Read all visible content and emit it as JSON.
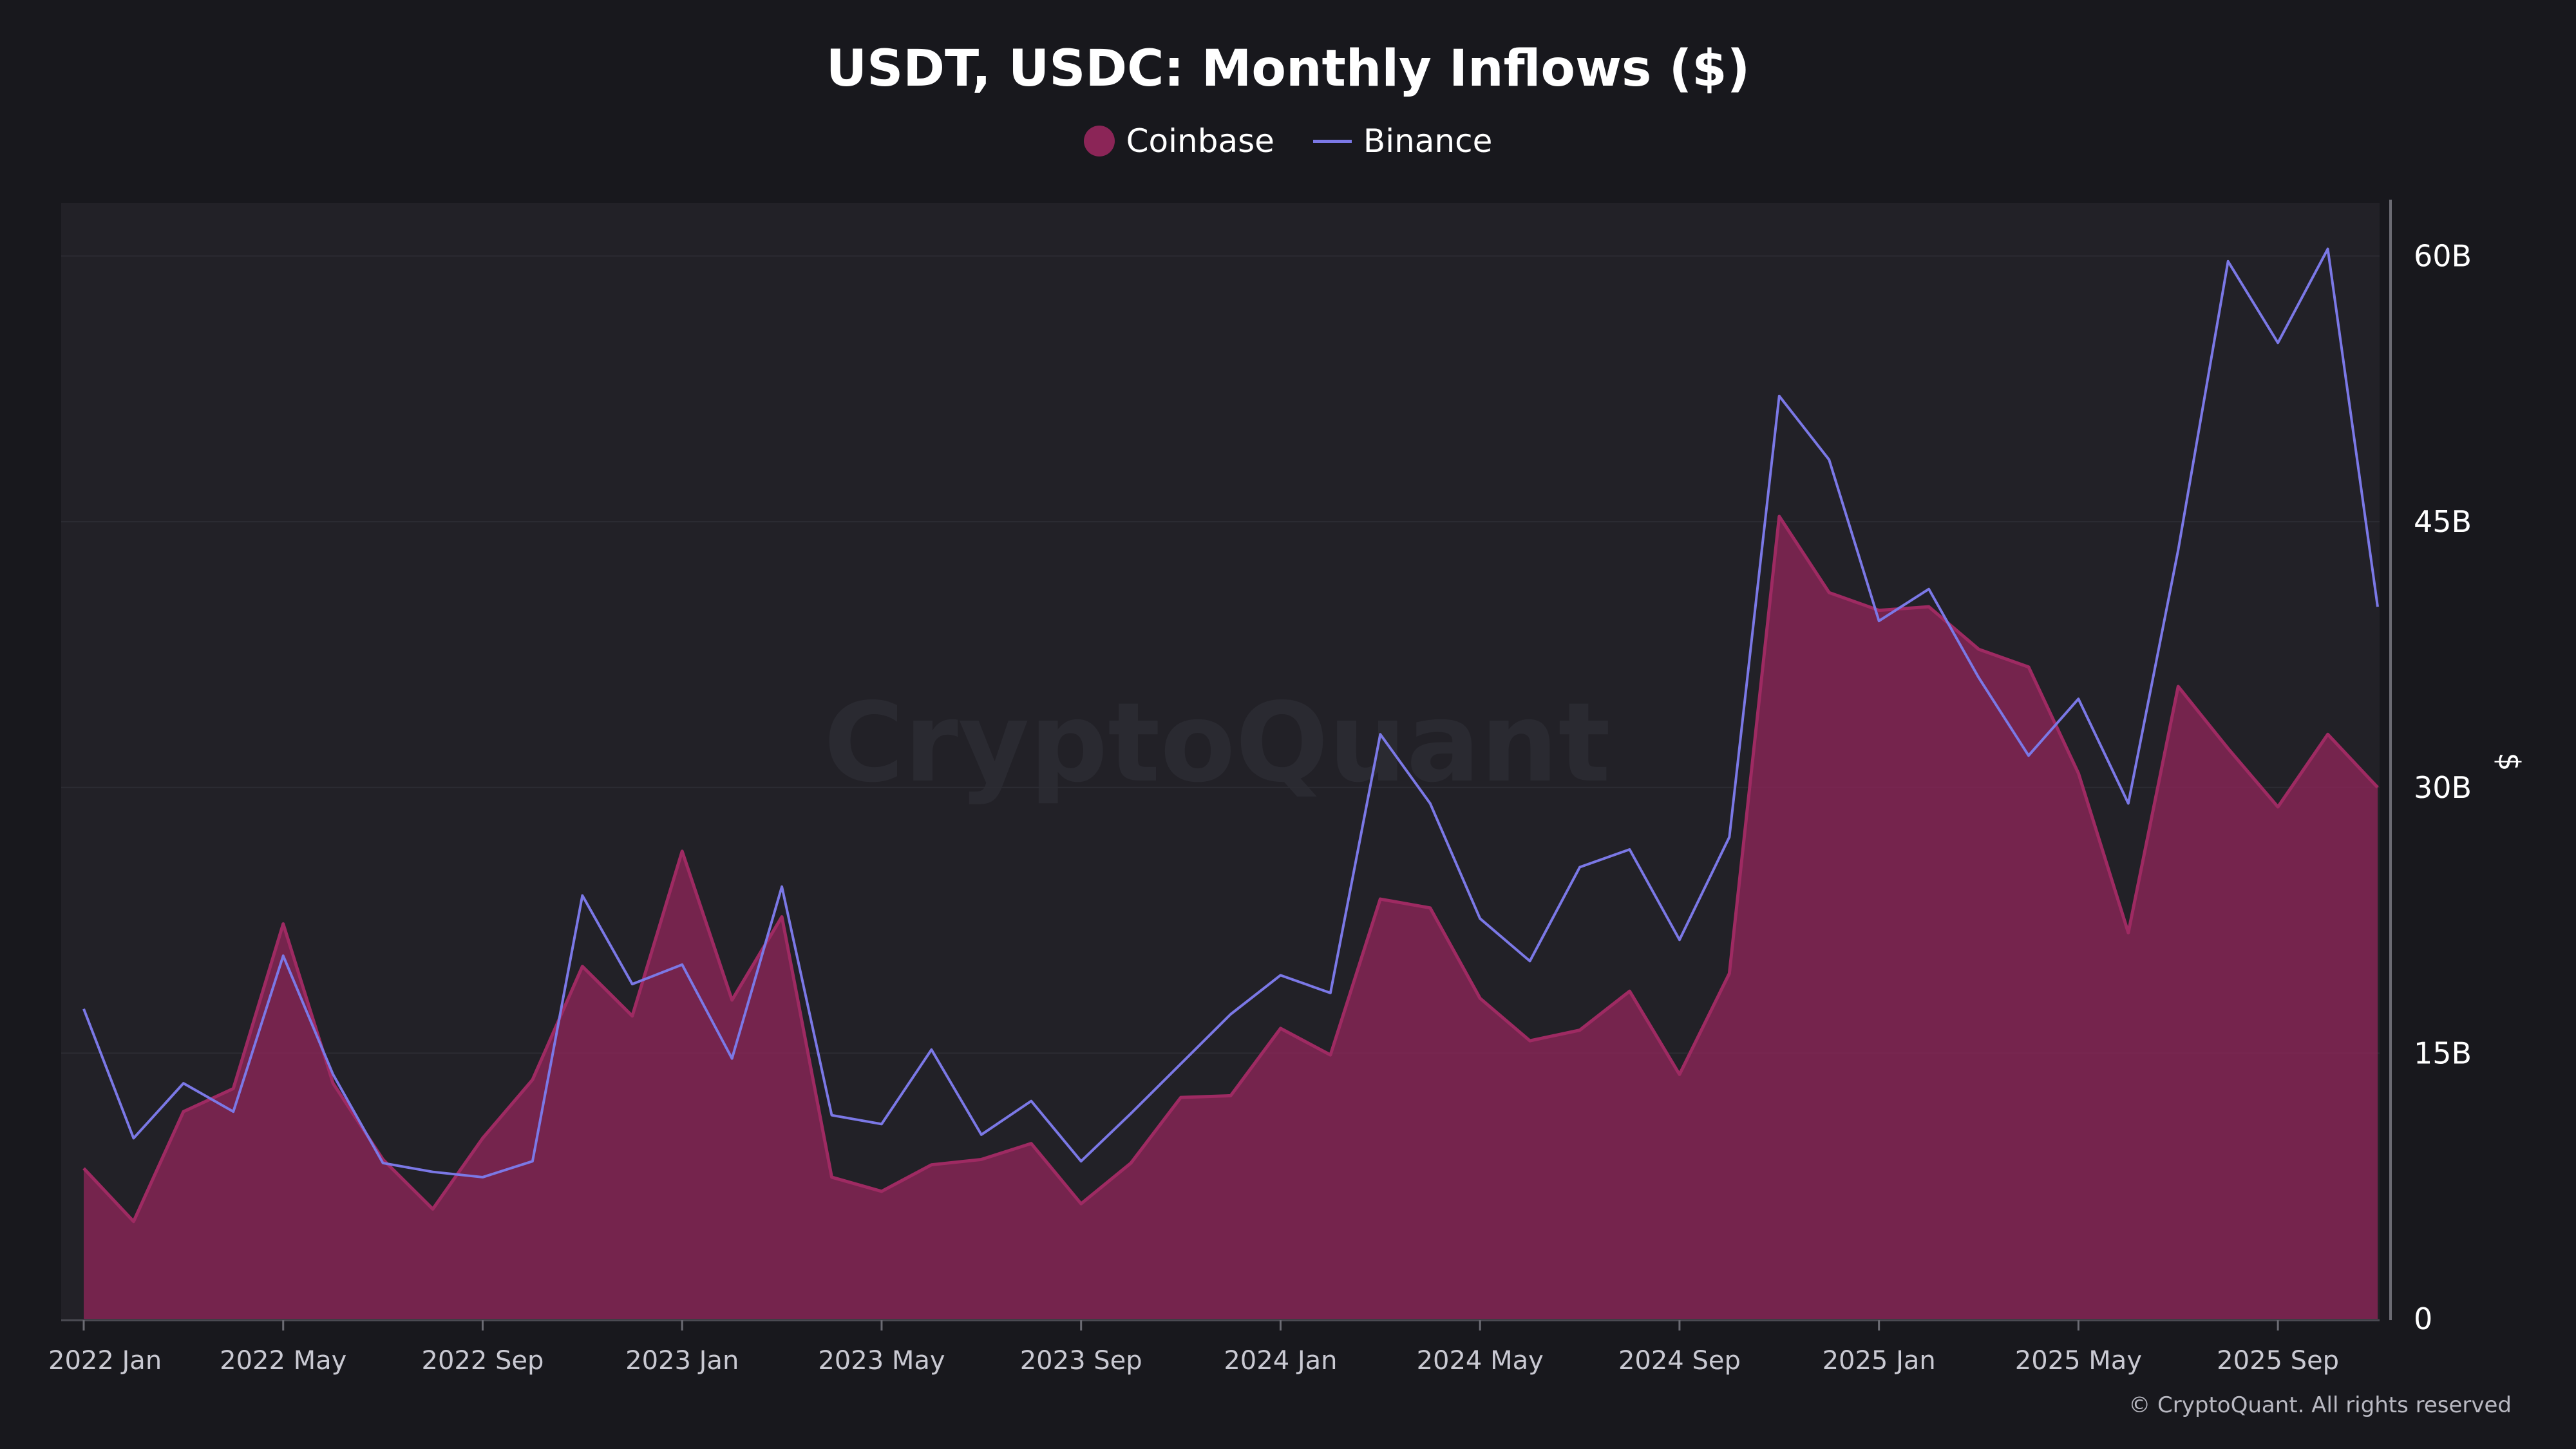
{
  "title": "USDT, USDC: Monthly Inflows ($)",
  "watermark": "CryptoQuant",
  "footer": "© CryptoQuant. All rights reserved",
  "ylabel": "$",
  "colors": {
    "coinbase": "#8b2557",
    "binance": "#7b78e6",
    "background": "#18181d",
    "plot_background": "#222127"
  },
  "chart_data": {
    "type": "area",
    "title": "USDT, USDC: Monthly Inflows ($)",
    "ylabel": "$",
    "ylim": [
      0,
      63
    ],
    "y_axis_side": "right",
    "y_ticks": [
      {
        "value": 0,
        "label": "0"
      },
      {
        "value": 15,
        "label": "15B"
      },
      {
        "value": 30,
        "label": "30B"
      },
      {
        "value": 45,
        "label": "45B"
      },
      {
        "value": 60,
        "label": "60B"
      }
    ],
    "x_ticks": [
      {
        "index": 0,
        "label": "2022 Jan"
      },
      {
        "index": 4,
        "label": "2022 May"
      },
      {
        "index": 8,
        "label": "2022 Sep"
      },
      {
        "index": 12,
        "label": "2023 Jan"
      },
      {
        "index": 16,
        "label": "2023 May"
      },
      {
        "index": 20,
        "label": "2023 Sep"
      },
      {
        "index": 24,
        "label": "2024 Jan"
      },
      {
        "index": 28,
        "label": "2024 May"
      },
      {
        "index": 32,
        "label": "2024 Sep"
      },
      {
        "index": 36,
        "label": "2025 Jan"
      },
      {
        "index": 40,
        "label": "2025 May"
      },
      {
        "index": 44,
        "label": "2025 Sep"
      }
    ],
    "x": [
      "2022-01",
      "2022-02",
      "2022-03",
      "2022-04",
      "2022-05",
      "2022-06",
      "2022-07",
      "2022-08",
      "2022-09",
      "2022-10",
      "2022-11",
      "2022-12",
      "2023-01",
      "2023-02",
      "2023-03",
      "2023-04",
      "2023-05",
      "2023-06",
      "2023-07",
      "2023-08",
      "2023-09",
      "2023-10",
      "2023-11",
      "2023-12",
      "2024-01",
      "2024-02",
      "2024-03",
      "2024-04",
      "2024-05",
      "2024-06",
      "2024-07",
      "2024-08",
      "2024-09",
      "2024-10",
      "2024-11",
      "2024-12",
      "2025-01",
      "2025-02",
      "2025-03",
      "2025-04",
      "2025-05",
      "2025-06",
      "2025-07",
      "2025-08",
      "2025-09",
      "2025-10",
      "2025-11"
    ],
    "legend_position": "top-center",
    "grid": true,
    "series": [
      {
        "name": "Coinbase",
        "type": "area",
        "color": "#8b2557",
        "values": [
          8.5,
          5.5,
          11.7,
          13,
          22.3,
          13.3,
          9,
          6.2,
          10.2,
          13.5,
          19.9,
          17.1,
          26.4,
          18,
          22.7,
          8,
          7.2,
          8.7,
          9,
          9.9,
          6.5,
          8.8,
          12.5,
          12.6,
          16.4,
          14.9,
          23.7,
          23.2,
          18.1,
          15.7,
          16.3,
          18.5,
          13.8,
          19.5,
          45.3,
          41,
          40,
          40.2,
          37.8,
          36.8,
          30.8,
          21.8,
          35.7,
          32.2,
          28.9,
          33,
          30
        ]
      },
      {
        "name": "Binance",
        "type": "line",
        "color": "#7b78e6",
        "values": [
          17.5,
          10.2,
          13.3,
          11.7,
          20.5,
          13.8,
          8.8,
          8.3,
          8,
          8.9,
          23.9,
          18.9,
          20,
          14.7,
          24.4,
          11.5,
          11,
          15.2,
          10.4,
          12.3,
          8.9,
          11.6,
          14.4,
          17.2,
          19.4,
          18.4,
          33,
          29.1,
          22.6,
          20.2,
          25.5,
          26.5,
          21.4,
          27.2,
          52.1,
          48.5,
          39.4,
          41.2,
          36.2,
          31.8,
          35,
          29.1,
          43.4,
          59.7,
          55.1,
          60.4,
          40.2
        ]
      }
    ]
  }
}
